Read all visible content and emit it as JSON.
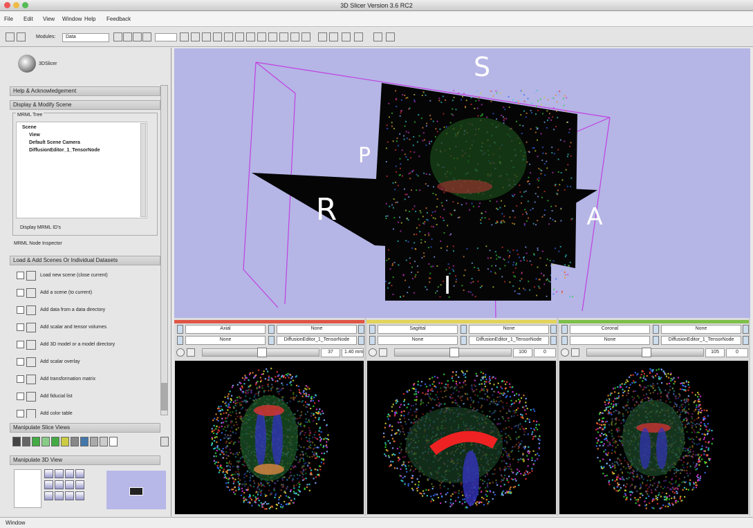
{
  "window": {
    "title": "3D Slicer Version 3.6 RC2"
  },
  "menu": [
    "File",
    "Edit",
    "View",
    "Window",
    "Help",
    "Feedback"
  ],
  "toolbar": {
    "modules_label": "Modules:",
    "module": "Data"
  },
  "logo": "3DSlicer",
  "panels": {
    "help": "Help & Acknowledgement",
    "scene": {
      "title": "Display & Modify Scene",
      "mrml_tree": "MRML Tree",
      "tree": [
        "Scene",
        "View",
        "Default Scene Camera",
        "DiffusionEditor_1_TensorNode"
      ],
      "display_ids": "Display MRML ID's",
      "inspector": "MRML Node Inspector"
    },
    "load": {
      "title": "Load & Add Scenes Or Individual Datasets",
      "items": [
        "Load new scene (close current)",
        "Add a scene (to current)",
        "Add data from a data directory",
        "Add scalar and tensor volumes",
        "Add 3D model or a model directory",
        "Add scalar overlay",
        "Add transformation matrix",
        "Add fiducial list",
        "Add color table"
      ]
    },
    "slice_views": "Manipulate Slice Views",
    "view_3d": "Manipulate 3D View"
  },
  "view3d": {
    "labels": [
      "S",
      "P",
      "R",
      "A",
      "I"
    ]
  },
  "slices": [
    {
      "orientation": "Axial",
      "foreground": "None",
      "background": "None",
      "label": "None",
      "volume": "DiffusionEditor_1_TensorNode",
      "offset": "37",
      "units": "1.40 mm"
    },
    {
      "orientation": "Sagittal",
      "foreground": "None",
      "background": "None",
      "label": "None",
      "volume": "DiffusionEditor_1_TensorNode",
      "offset": "100",
      "units": "0"
    },
    {
      "orientation": "Coronal",
      "foreground": "None",
      "background": "None",
      "label": "None",
      "volume": "DiffusionEditor_1_TensorNode",
      "offset": "105",
      "units": "0"
    }
  ],
  "status": "Window"
}
